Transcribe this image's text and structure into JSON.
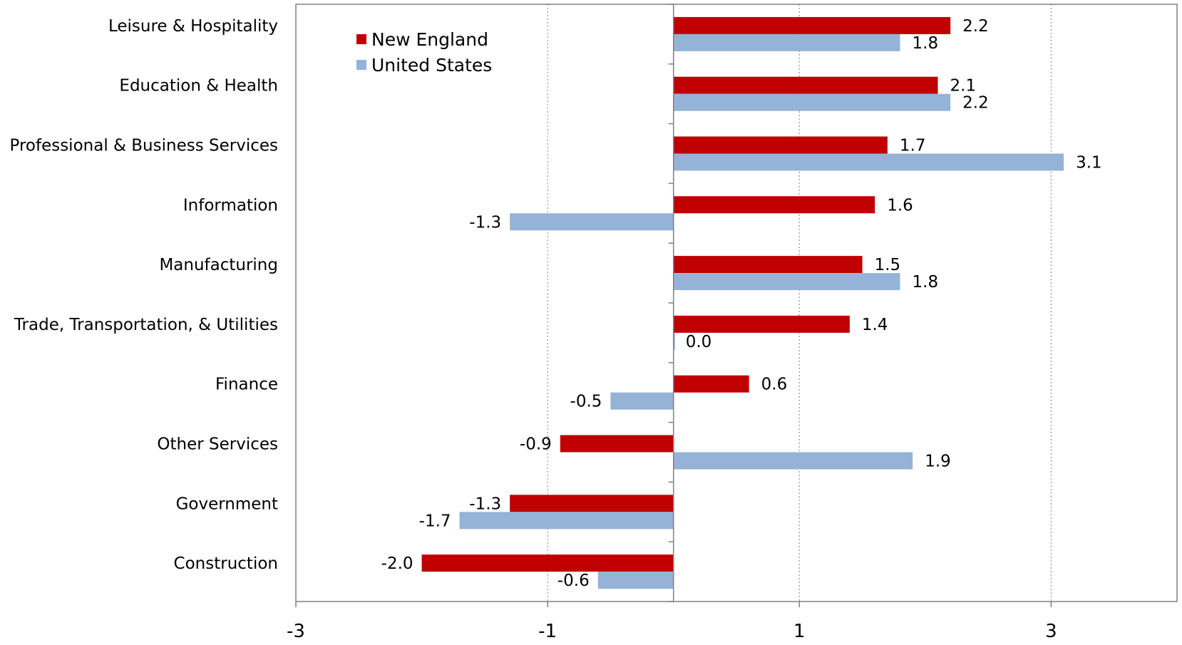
{
  "chart_data": {
    "type": "bar",
    "orientation": "horizontal",
    "categories": [
      "Leisure & Hospitality",
      "Education & Health",
      "Professional & Business Services",
      "Information",
      "Manufacturing",
      "Trade, Transportation, & Utilities",
      "Finance",
      "Other Services",
      "Government",
      "Construction"
    ],
    "series": [
      {
        "name": "New England",
        "color": "#c00000",
        "values": [
          2.2,
          2.1,
          1.7,
          1.6,
          1.5,
          1.4,
          0.6,
          -0.9,
          -1.3,
          -2.0
        ],
        "labels": [
          "2.2",
          "2.1",
          "1.7",
          "1.6",
          "1.5",
          "1.4",
          "0.6",
          "-0.9",
          "-1.3",
          "-2.0"
        ]
      },
      {
        "name": "United States",
        "color": "#95b3d7",
        "values": [
          1.8,
          2.2,
          3.1,
          -1.3,
          1.8,
          0.0,
          -0.5,
          1.9,
          -1.7,
          -0.6
        ],
        "labels": [
          "1.8",
          "2.2",
          "3.1",
          "-1.3",
          "1.8",
          "0.0",
          "-0.5",
          "1.9",
          "-1.7",
          "-0.6"
        ]
      }
    ],
    "xlim": [
      -3,
      4
    ],
    "xticks": [
      "-3",
      "-1",
      "1",
      "3"
    ],
    "xtick_values": [
      -3,
      -1,
      1,
      3
    ],
    "gridlines": "vertical dotted at -1, 1, 3",
    "legend_position": "top-left"
  }
}
